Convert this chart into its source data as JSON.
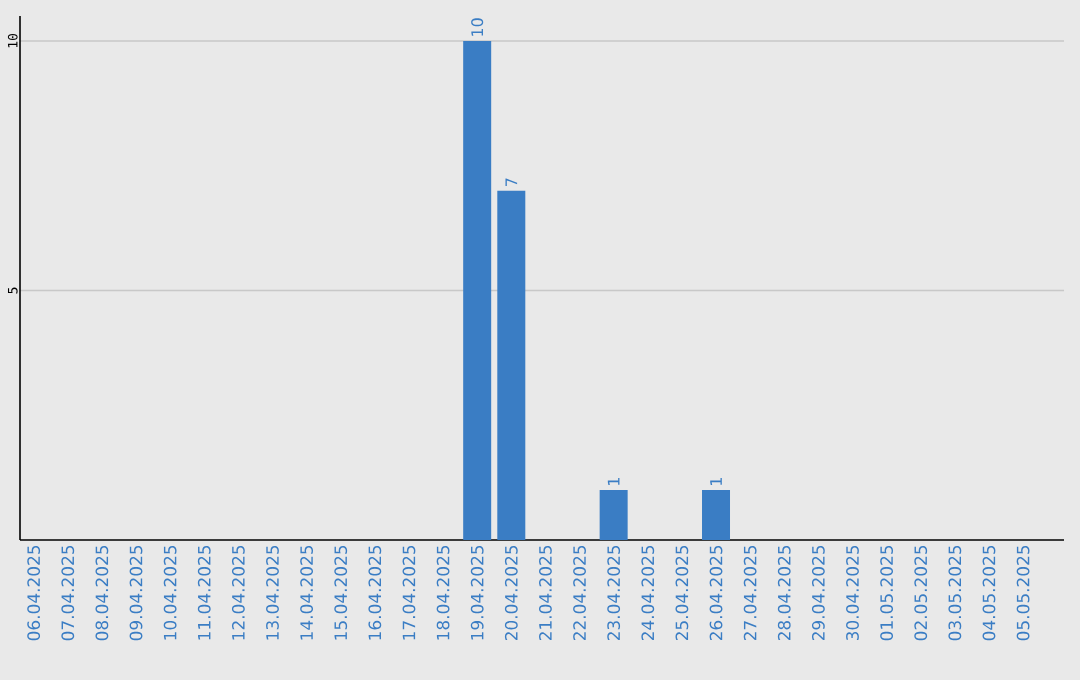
{
  "chart_data": {
    "type": "bar",
    "categories": [
      "06.04.2025",
      "07.04.2025",
      "08.04.2025",
      "09.04.2025",
      "10.04.2025",
      "11.04.2025",
      "12.04.2025",
      "13.04.2025",
      "14.04.2025",
      "15.04.2025",
      "16.04.2025",
      "17.04.2025",
      "18.04.2025",
      "19.04.2025",
      "20.04.2025",
      "21.04.2025",
      "22.04.2025",
      "23.04.2025",
      "24.04.2025",
      "25.04.2025",
      "26.04.2025",
      "27.04.2025",
      "28.04.2025",
      "29.04.2025",
      "30.04.2025",
      "01.05.2025",
      "02.05.2025",
      "03.05.2025",
      "04.05.2025",
      "05.05.2025"
    ],
    "values": [
      0,
      0,
      0,
      0,
      0,
      0,
      0,
      0,
      0,
      0,
      0,
      0,
      0,
      10,
      7,
      0,
      0,
      1,
      0,
      0,
      1,
      0,
      0,
      0,
      0,
      0,
      0,
      0,
      0,
      0
    ],
    "value_labels": [
      null,
      null,
      null,
      null,
      null,
      null,
      null,
      null,
      null,
      null,
      null,
      null,
      null,
      "10",
      "7",
      null,
      null,
      "1",
      null,
      null,
      "1",
      null,
      null,
      null,
      null,
      null,
      null,
      null,
      null,
      null
    ],
    "color": "#3a7dc4",
    "ylim": [
      0,
      10.5
    ],
    "yticks": [
      5,
      10
    ],
    "grid": "y"
  }
}
